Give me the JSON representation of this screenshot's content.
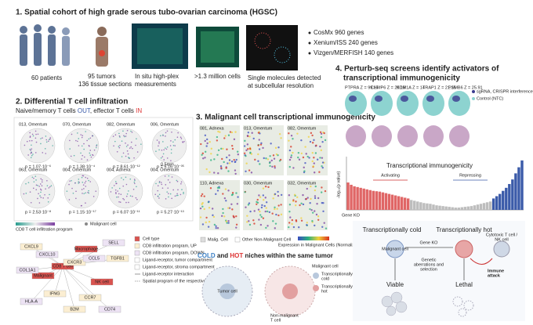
{
  "panel1": {
    "title": "1. Spatial cohort of high grade serous tubo-ovarian carcinoma (HGSC)",
    "patients": "60 patients",
    "tumors": "95 tumors",
    "sections": "136 tissue sections",
    "measurements": [
      "In situ high-plex",
      "measurements"
    ],
    "cells": ">1.3 million cells",
    "molecules": [
      "Single molecules detected",
      "at subcellular resolution"
    ],
    "platforms": [
      "CosMx 960 genes",
      "Xenium/ISS 240 genes",
      "Vizgen/MERFISH 140 genes"
    ]
  },
  "panel2": {
    "title": "2. Differential T cell infiltration",
    "subtitle": [
      "Naive/memory T cells ",
      "OUT",
      ", effector T cells ",
      "IN"
    ],
    "samples": [
      {
        "label": "013, Omentum",
        "p": "p = 1.07·10⁻⁶"
      },
      {
        "label": "070, Omentum",
        "p": "p = 1.38·10⁻⁴"
      },
      {
        "label": "082, Omentum",
        "p": "p = 8.61·10⁻¹²"
      },
      {
        "label": "006, Omentum",
        "p": "p = 5.16·10⁻³⁵"
      },
      {
        "label": "063, Omentum",
        "p": "p = 2.53·10⁻⁸"
      },
      {
        "label": "004, Omentum",
        "p": "p = 1.15·10⁻¹⁷"
      },
      {
        "label": "004, Adnexa",
        "p": "p = 6.07·10⁻¹¹"
      },
      {
        "label": "004, Omentum",
        "p": "p = 5.27·10⁻¹³"
      }
    ],
    "scale": "0.5mm",
    "program": "CD8 T cell infiltration program",
    "malignant": "Malignant cell",
    "network_nodes": [
      "CD8 T cell",
      "Malignant",
      "Macrophage",
      "NK cell",
      "CXCL9",
      "CXCL10",
      "CXCR3",
      "CCL5",
      "IFNG",
      "HLA-A",
      "B2M",
      "CD74",
      "TGFB1",
      "COL1A1",
      "CCR7",
      "SELL"
    ],
    "network_legend": [
      "Cell type",
      "CD8 infiltration program, UP",
      "CD8 infiltration program, DOWN",
      "Ligand-receptor, tumor compartment",
      "Ligand-receptor, stroma compartment",
      "Ligand-receptor interaction",
      "Spatial program of the respective cell type"
    ]
  },
  "panel3": {
    "title": "3. Malignant cell transcriptional immunogenicity",
    "tiles": [
      "081, Adnexa",
      "013, Omentum",
      "082, Omentum",
      "110, Adnexa",
      "030, Omentum",
      "032, Omentum"
    ],
    "legend": [
      "Malig. Cell",
      "Other Non-Malignant Cell",
      "Expression in Malignant Cells (Normalized)"
    ],
    "niche_title": [
      "COLD",
      " and ",
      "HOT",
      " niches within the same tumor"
    ],
    "malignant": "Malignant cell",
    "cold": [
      "Transcriptionally",
      "cold"
    ],
    "hot": [
      "Transcriptionally",
      "hot"
    ],
    "tcell": "Tumor cell",
    "stroma": [
      "Non-malignant",
      "T cell"
    ]
  },
  "panel4": {
    "title": [
      "4. Perturb-seq screens identify activators of",
      "transcriptional immunogenicity"
    ],
    "umaps": [
      "PTPRA Z = 99.17",
      "CHMP6 Z = 29.19",
      "KDM1A Z = 14",
      "TRAP1 Z = 21.15",
      "PSMB6 Z = 25.91"
    ],
    "umap_legend": [
      "sgRNA, CRISPR interference",
      "Control (NTC)"
    ],
    "chart": {
      "title": "Transcriptional immunogenicity",
      "activating": "Activating",
      "repressing": "Repressing",
      "ylabel": "-log₁₀(p value)",
      "xlabel": "Gene KO",
      "ylim": [
        0,
        7
      ],
      "colors": {
        "activating": "#e06666",
        "neutral": "#bdbdbd",
        "repressing": "#3b5ba9"
      },
      "activating_values": [
        3.6,
        3.3,
        3.1,
        3.0,
        2.9,
        2.8,
        2.7,
        2.6,
        2.5,
        2.45,
        2.4,
        2.3,
        2.2,
        2.1,
        2.0,
        1.9,
        1.8,
        1.7,
        1.6,
        1.5
      ],
      "neutral_values": [
        1.3,
        1.2,
        1.1,
        1.0,
        0.9,
        0.85,
        0.8,
        0.7,
        0.6,
        0.55,
        0.5,
        0.45,
        0.4,
        0.35,
        0.3,
        0.3,
        0.35,
        0.4,
        0.45,
        0.5,
        0.6,
        0.7,
        0.8,
        0.9,
        1.0,
        1.1
      ],
      "repressing_values": [
        1.5,
        1.8,
        2.1,
        2.5,
        2.9,
        3.4,
        4.0,
        4.8,
        5.6,
        6.5
      ]
    },
    "cold": "Transcriptionally cold",
    "hot": "Transcriptionally hot",
    "ko": "Gene KO",
    "malignant": "Malignant cell",
    "aberrations": [
      "Genetic",
      "aberrations and",
      "selection"
    ],
    "killer": [
      "Cytotoxic T cell /",
      "NK cell"
    ],
    "attack": [
      "Immune",
      "attack"
    ],
    "viable": "Viable",
    "lethal": "Lethal"
  }
}
